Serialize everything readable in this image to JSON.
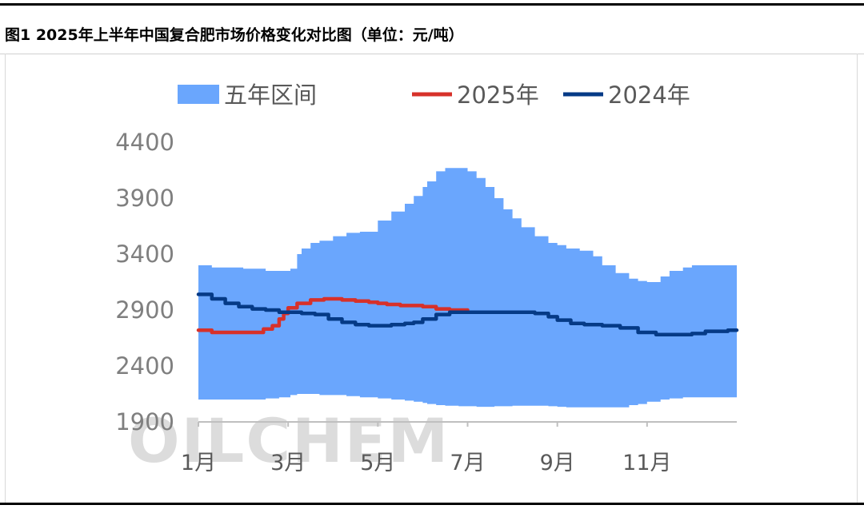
{
  "title": "图1 2025年上半年中国复合肥市场价格变化对比图（单位：元/吨）",
  "watermark": "OILCHEM",
  "chart_data": {
    "type": "line",
    "title": "图1 2025年上半年中国复合肥市场价格变化对比图（单位：元/吨）",
    "ylim": [
      1900,
      4400
    ],
    "yticks": [
      1900,
      2400,
      2900,
      3400,
      3900,
      4400
    ],
    "xlim": [
      1,
      13
    ],
    "xticks": [
      1,
      3,
      5,
      7,
      9,
      11
    ],
    "xtick_labels": [
      "1月",
      "3月",
      "5月",
      "7月",
      "9月",
      "11月"
    ],
    "legend": [
      "五年区间",
      "2025年",
      "2024年"
    ],
    "legend_position": "top",
    "grid": false,
    "colors": {
      "band": "#6aa6fd",
      "s2025": "#d7312a",
      "s2024": "#053a86"
    },
    "band": {
      "name": "五年区间",
      "x": [
        1.0,
        1.3,
        2.0,
        2.5,
        2.8,
        3.05,
        3.2,
        3.3,
        3.5,
        3.7,
        4.0,
        4.3,
        4.6,
        5.0,
        5.3,
        5.6,
        5.8,
        6.0,
        6.1,
        6.3,
        6.5,
        6.8,
        7.0,
        7.2,
        7.4,
        7.6,
        7.8,
        8.0,
        8.2,
        8.5,
        8.8,
        9.0,
        9.2,
        9.5,
        9.8,
        10.0,
        10.3,
        10.6,
        10.8,
        11.0,
        11.3,
        11.5,
        11.8,
        12.0,
        12.3,
        12.6,
        12.8
      ],
      "high": [
        3300,
        3280,
        3270,
        3250,
        3250,
        3270,
        3400,
        3450,
        3500,
        3520,
        3560,
        3590,
        3600,
        3700,
        3780,
        3850,
        3920,
        4000,
        4050,
        4140,
        4170,
        4170,
        4140,
        4080,
        4000,
        3900,
        3800,
        3720,
        3640,
        3560,
        3500,
        3480,
        3450,
        3430,
        3380,
        3300,
        3230,
        3180,
        3160,
        3150,
        3200,
        3250,
        3280,
        3300,
        3300,
        3300,
        3300
      ],
      "low": [
        2100,
        2100,
        2100,
        2110,
        2120,
        2140,
        2150,
        2150,
        2150,
        2140,
        2140,
        2130,
        2120,
        2110,
        2100,
        2090,
        2080,
        2070,
        2060,
        2050,
        2045,
        2040,
        2040,
        2035,
        2035,
        2040,
        2040,
        2045,
        2045,
        2045,
        2040,
        2035,
        2030,
        2030,
        2030,
        2030,
        2030,
        2050,
        2060,
        2080,
        2100,
        2110,
        2120,
        2120,
        2120,
        2120,
        2120
      ]
    },
    "series": [
      {
        "name": "2025年",
        "x": [
          1.0,
          1.3,
          1.7,
          2.0,
          2.3,
          2.45,
          2.65,
          2.8,
          2.9,
          3.0,
          3.2,
          3.5,
          3.8,
          4.0,
          4.2,
          4.5,
          4.8,
          5.0,
          5.2,
          5.5,
          6.0,
          6.3,
          6.6,
          7.0
        ],
        "values": [
          2720,
          2700,
          2700,
          2700,
          2700,
          2730,
          2760,
          2820,
          2870,
          2920,
          2960,
          2990,
          3000,
          3000,
          2990,
          2980,
          2970,
          2960,
          2950,
          2940,
          2930,
          2910,
          2900,
          2900
        ]
      },
      {
        "name": "2024年",
        "x": [
          1.0,
          1.3,
          1.6,
          1.9,
          2.2,
          2.5,
          2.8,
          3.0,
          3.3,
          3.6,
          3.9,
          4.2,
          4.5,
          4.8,
          5.0,
          5.3,
          5.6,
          5.8,
          6.0,
          6.3,
          6.6,
          7.0,
          7.5,
          8.0,
          8.5,
          8.8,
          9.0,
          9.3,
          9.6,
          10.0,
          10.4,
          10.8,
          11.2,
          11.6,
          12.0,
          12.3,
          12.8
        ],
        "values": [
          3040,
          3000,
          2960,
          2930,
          2910,
          2900,
          2880,
          2880,
          2870,
          2860,
          2820,
          2790,
          2770,
          2760,
          2760,
          2770,
          2780,
          2790,
          2820,
          2860,
          2880,
          2880,
          2880,
          2880,
          2870,
          2840,
          2810,
          2780,
          2770,
          2760,
          2740,
          2700,
          2680,
          2680,
          2690,
          2710,
          2720
        ]
      }
    ]
  }
}
